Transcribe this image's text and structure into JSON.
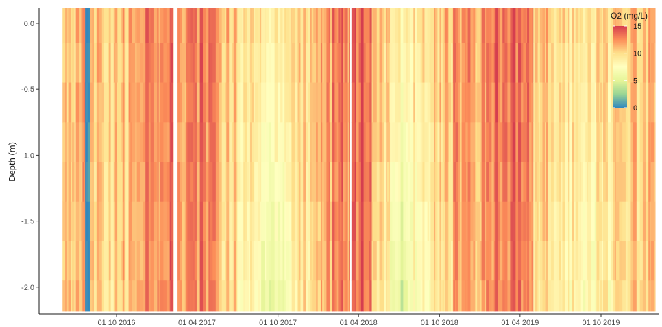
{
  "chart_data": {
    "type": "heatmap",
    "title": "",
    "xlabel": "",
    "ylabel": "Depth (m)",
    "x_range": [
      "2016-06-01",
      "2020-01-30"
    ],
    "ylim": [
      -2.2,
      0.1
    ],
    "x_ticks": [
      {
        "date": "2016-10-01",
        "label": "01 10 2016"
      },
      {
        "date": "2017-04-01",
        "label": "01 04 2017"
      },
      {
        "date": "2017-10-01",
        "label": "01 10 2017"
      },
      {
        "date": "2018-04-01",
        "label": "01 04 2018"
      },
      {
        "date": "2018-10-01",
        "label": "01 10 2018"
      },
      {
        "date": "2019-04-01",
        "label": "01 04 2019"
      },
      {
        "date": "2019-10-01",
        "label": "01 10 2019"
      }
    ],
    "y_ticks": [
      {
        "value": 0.0,
        "label": "0.0"
      },
      {
        "value": -0.5,
        "label": "-0.5"
      },
      {
        "value": -1.0,
        "label": "-1.0"
      },
      {
        "value": -1.5,
        "label": "-1.5"
      },
      {
        "value": -2.0,
        "label": "-2.0"
      }
    ],
    "depth_levels": [
      0.0,
      -0.3,
      -0.6,
      -0.9,
      -1.2,
      -1.5,
      -1.8,
      -2.1
    ],
    "grid": false,
    "colorbar": {
      "title": "O2 (mg/L)",
      "position": "top-right",
      "range": [
        0,
        15
      ],
      "ticks": [
        {
          "value": 15,
          "label": "15"
        },
        {
          "value": 10,
          "label": "10"
        },
        {
          "value": 5,
          "label": "5"
        },
        {
          "value": 0,
          "label": "0"
        }
      ],
      "palette": [
        "#3288bd",
        "#99d594",
        "#e6f598",
        "#ffffbf",
        "#fee08b",
        "#fc8d59",
        "#d53e4f"
      ]
    },
    "series": [
      {
        "start": "2016-06-01",
        "end": "2016-06-30",
        "o2_top": 10.5,
        "o2_bottom": 10.5
      },
      {
        "start": "2016-07-01",
        "end": "2016-07-21",
        "o2_top": 11.5,
        "o2_bottom": 11.0
      },
      {
        "start": "2016-07-22",
        "end": "2016-08-01",
        "o2_top": 0.5,
        "o2_bottom": 0.5
      },
      {
        "start": "2016-08-02",
        "end": "2016-08-21",
        "o2_top": 11.0,
        "o2_bottom": 10.5
      },
      {
        "start": "2016-08-22",
        "end": "2016-09-30",
        "o2_top": 10.5,
        "o2_bottom": 10.0
      },
      {
        "start": "2016-10-01",
        "end": "2016-11-15",
        "o2_top": 11.0,
        "o2_bottom": 10.5
      },
      {
        "start": "2016-11-16",
        "end": "2016-12-31",
        "o2_top": 12.5,
        "o2_bottom": 12.0
      },
      {
        "start": "2017-01-01",
        "end": "2017-02-05",
        "o2_top": 13.0,
        "o2_bottom": 13.0
      },
      {
        "start": "2017-02-16",
        "end": "2017-03-15",
        "o2_top": 12.0,
        "o2_bottom": 12.0
      },
      {
        "start": "2017-03-16",
        "end": "2017-05-20",
        "o2_top": 13.0,
        "o2_bottom": 12.5
      },
      {
        "start": "2017-05-21",
        "end": "2017-06-30",
        "o2_top": 11.0,
        "o2_bottom": 10.0
      },
      {
        "start": "2017-07-01",
        "end": "2017-08-20",
        "o2_top": 9.5,
        "o2_bottom": 8.0
      },
      {
        "start": "2017-08-21",
        "end": "2017-10-31",
        "o2_top": 9.5,
        "o2_bottom": 6.5
      },
      {
        "start": "2017-11-01",
        "end": "2017-12-15",
        "o2_top": 10.5,
        "o2_bottom": 9.5
      },
      {
        "start": "2017-12-16",
        "end": "2018-01-31",
        "o2_top": 12.0,
        "o2_bottom": 11.5
      },
      {
        "start": "2018-02-01",
        "end": "2018-03-10",
        "o2_top": 13.0,
        "o2_bottom": 12.5
      },
      {
        "start": "2018-03-16",
        "end": "2018-04-30",
        "o2_top": 14.0,
        "o2_bottom": 13.5
      },
      {
        "start": "2018-05-01",
        "end": "2018-06-10",
        "o2_top": 10.5,
        "o2_bottom": 9.0
      },
      {
        "start": "2018-06-11",
        "end": "2018-07-20",
        "o2_top": 9.0,
        "o2_bottom": 5.5
      },
      {
        "start": "2018-07-21",
        "end": "2018-09-10",
        "o2_top": 9.5,
        "o2_bottom": 7.5
      },
      {
        "start": "2018-09-11",
        "end": "2018-10-31",
        "o2_top": 11.0,
        "o2_bottom": 10.0
      },
      {
        "start": "2018-11-01",
        "end": "2019-01-31",
        "o2_top": 12.0,
        "o2_bottom": 11.5
      },
      {
        "start": "2019-02-01",
        "end": "2019-04-30",
        "o2_top": 13.5,
        "o2_bottom": 13.0
      },
      {
        "start": "2019-05-01",
        "end": "2019-06-15",
        "o2_top": 11.0,
        "o2_bottom": 10.0
      },
      {
        "start": "2019-06-16",
        "end": "2019-08-15",
        "o2_top": 9.5,
        "o2_bottom": 8.5
      },
      {
        "start": "2019-08-16",
        "end": "2019-09-20",
        "o2_top": 9.0,
        "o2_bottom": 7.0
      },
      {
        "start": "2019-09-21",
        "end": "2019-10-31",
        "o2_top": 10.0,
        "o2_bottom": 8.5
      },
      {
        "start": "2019-11-01",
        "end": "2020-01-30",
        "o2_top": 11.0,
        "o2_bottom": 10.5
      }
    ]
  }
}
